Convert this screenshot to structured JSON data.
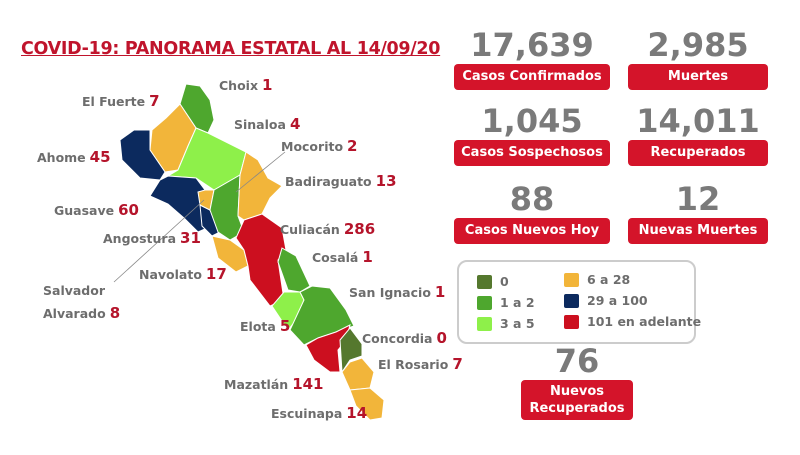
{
  "title": "COVID-19: PANORAMA ESTATAL AL 14/09/20",
  "stats": [
    {
      "value": "17,639",
      "label": "Casos Confirmados"
    },
    {
      "value": "2,985",
      "label": "Muertes"
    },
    {
      "value": "1,045",
      "label": "Casos Sospechosos"
    },
    {
      "value": "14,011",
      "label": "Recuperados"
    },
    {
      "value": "88",
      "label": "Casos Nuevos Hoy"
    },
    {
      "value": "12",
      "label": "Nuevas Muertes"
    },
    {
      "value": "76",
      "label": "Nuevos Recuperados"
    }
  ],
  "legend": [
    {
      "label": "0",
      "color": "#55782e"
    },
    {
      "label": "1 a 2",
      "color": "#4ea72e"
    },
    {
      "label": "3 a 5",
      "color": "#8ef04a"
    },
    {
      "label": "6 a 28",
      "color": "#f2b53a"
    },
    {
      "label": "29 a 100",
      "color": "#0c2a5e"
    },
    {
      "label": "101 en adelante",
      "color": "#cc0f1f"
    }
  ],
  "municipalities": [
    {
      "name": "Choix",
      "value": "1",
      "color": "#4ea72e"
    },
    {
      "name": "El Fuerte",
      "value": "7",
      "color": "#f2b53a"
    },
    {
      "name": "Sinaloa",
      "value": "4",
      "color": "#8ef04a"
    },
    {
      "name": "Ahome",
      "value": "45",
      "color": "#0c2a5e"
    },
    {
      "name": "Mocorito",
      "value": "2",
      "color": "#4ea72e"
    },
    {
      "name": "Badiraguato",
      "value": "13",
      "color": "#f2b53a"
    },
    {
      "name": "Guasave",
      "value": "60",
      "color": "#0c2a5e"
    },
    {
      "name": "Angostura",
      "value": "31",
      "color": "#0c2a5e"
    },
    {
      "name": "Culiacán",
      "value": "286",
      "color": "#cc0f1f"
    },
    {
      "name": "Cosalá",
      "value": "1",
      "color": "#4ea72e"
    },
    {
      "name": "Salvador Alvarado",
      "value": "8",
      "color": "#f2b53a"
    },
    {
      "name": "Navolato",
      "value": "17",
      "color": "#f2b53a"
    },
    {
      "name": "San Ignacio",
      "value": "1",
      "color": "#4ea72e"
    },
    {
      "name": "Elota",
      "value": "5",
      "color": "#8ef04a"
    },
    {
      "name": "Concordia",
      "value": "0",
      "color": "#55782e"
    },
    {
      "name": "El Rosario",
      "value": "7",
      "color": "#f2b53a"
    },
    {
      "name": "Mazatlán",
      "value": "141",
      "color": "#cc0f1f"
    },
    {
      "name": "Escuinapa",
      "value": "14",
      "color": "#f2b53a"
    }
  ]
}
